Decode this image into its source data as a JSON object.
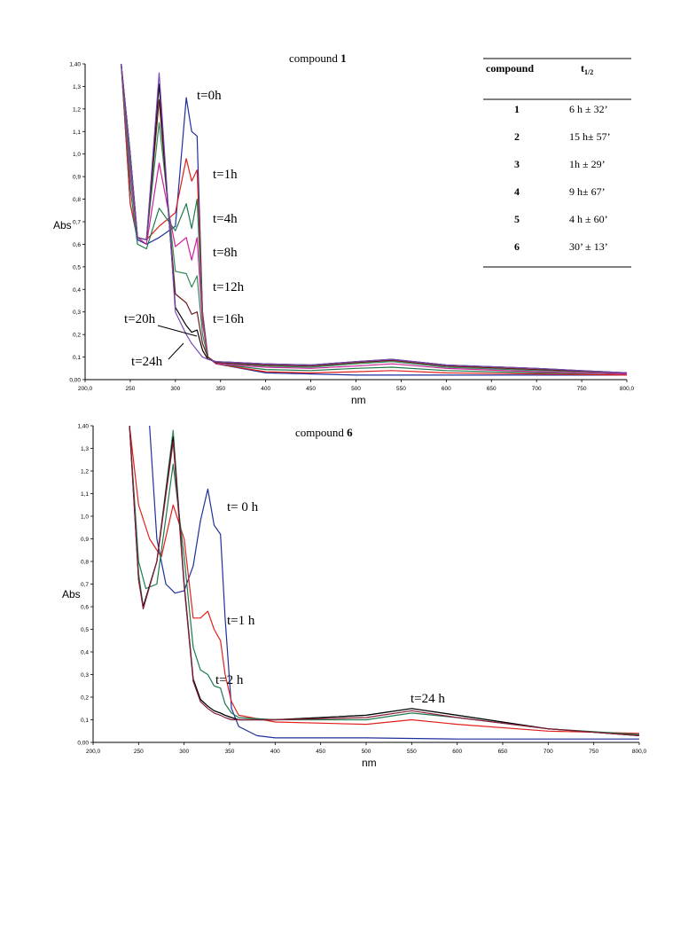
{
  "chart_data": [
    {
      "type": "line",
      "title": "compound",
      "title_bold": "1",
      "xlabel": "nm",
      "ylabel": "Abs",
      "xlim": [
        200,
        800
      ],
      "ylim": [
        0,
        1.4
      ],
      "x_ticks": [
        "200,0",
        "250",
        "300",
        "350",
        "400",
        "450",
        "500",
        "550",
        "600",
        "650",
        "700",
        "750",
        "800,0"
      ],
      "y_ticks": [
        "0,00",
        "0,1",
        "0,2",
        "0,3",
        "0,4",
        "0,5",
        "0,6",
        "0,7",
        "0,8",
        "0,9",
        "1,0",
        "1,1",
        "1,2",
        "1,3",
        "1,40"
      ],
      "grid": false,
      "annotations": [
        "t=0h",
        "t=1h",
        "t=4h",
        "t=8h",
        "t=12h",
        "t=16h",
        "t=20h",
        "t=24h"
      ],
      "series": [
        {
          "color": "#1f2f9c",
          "x": [
            240,
            250,
            258,
            268,
            282,
            300,
            312,
            318,
            324,
            330,
            336,
            345,
            400,
            450,
            500,
            540,
            600,
            700,
            800
          ],
          "y": [
            1.4,
            0.78,
            0.62,
            0.6,
            0.63,
            0.68,
            1.25,
            1.1,
            1.08,
            0.3,
            0.1,
            0.07,
            0.03,
            0.025,
            0.02,
            0.02,
            0.02,
            0.02,
            0.02
          ]
        },
        {
          "color": "#e0201c",
          "x": [
            240,
            250,
            258,
            268,
            282,
            300,
            312,
            318,
            324,
            330,
            336,
            345,
            400,
            450,
            500,
            540,
            600,
            700,
            800
          ],
          "y": [
            1.4,
            0.78,
            0.63,
            0.62,
            0.68,
            0.74,
            0.98,
            0.88,
            0.93,
            0.3,
            0.1,
            0.07,
            0.035,
            0.03,
            0.035,
            0.04,
            0.03,
            0.025,
            0.02
          ]
        },
        {
          "color": "#1e7a4c",
          "x": [
            240,
            250,
            258,
            268,
            282,
            300,
            312,
            318,
            324,
            330,
            336,
            345,
            400,
            450,
            500,
            540,
            600,
            700,
            800
          ],
          "y": [
            1.4,
            0.85,
            0.6,
            0.58,
            0.76,
            0.66,
            0.78,
            0.67,
            0.8,
            0.28,
            0.1,
            0.07,
            0.045,
            0.04,
            0.05,
            0.055,
            0.04,
            0.03,
            0.025
          ]
        },
        {
          "color": "#d0209a",
          "x": [
            240,
            250,
            258,
            268,
            282,
            300,
            312,
            318,
            324,
            330,
            336,
            345,
            400,
            450,
            500,
            540,
            600,
            700,
            800
          ],
          "y": [
            1.4,
            0.9,
            0.63,
            0.6,
            0.96,
            0.59,
            0.63,
            0.53,
            0.63,
            0.25,
            0.1,
            0.07,
            0.055,
            0.05,
            0.06,
            0.07,
            0.05,
            0.035,
            0.025
          ]
        },
        {
          "color": "#2e8b57",
          "x": [
            240,
            250,
            258,
            268,
            282,
            300,
            312,
            318,
            324,
            330,
            336,
            345,
            400,
            450,
            500,
            540,
            600,
            700,
            800
          ],
          "y": [
            1.4,
            0.95,
            0.63,
            0.62,
            1.14,
            0.48,
            0.47,
            0.41,
            0.46,
            0.2,
            0.1,
            0.075,
            0.06,
            0.055,
            0.07,
            0.08,
            0.055,
            0.04,
            0.03
          ]
        },
        {
          "color": "#6b1a1a",
          "x": [
            240,
            250,
            258,
            268,
            282,
            300,
            312,
            318,
            324,
            330,
            336,
            345,
            400,
            450,
            500,
            540,
            600,
            700,
            800
          ],
          "y": [
            1.4,
            1.0,
            0.63,
            0.62,
            1.24,
            0.38,
            0.34,
            0.29,
            0.3,
            0.16,
            0.1,
            0.075,
            0.065,
            0.06,
            0.075,
            0.085,
            0.06,
            0.045,
            0.03
          ]
        },
        {
          "color": "#000000",
          "x": [
            240,
            250,
            258,
            268,
            282,
            300,
            312,
            318,
            324,
            330,
            336,
            345,
            400,
            450,
            500,
            540,
            600,
            700,
            800
          ],
          "y": [
            1.4,
            1.0,
            0.63,
            0.62,
            1.31,
            0.32,
            0.24,
            0.21,
            0.22,
            0.13,
            0.09,
            0.08,
            0.07,
            0.065,
            0.08,
            0.09,
            0.065,
            0.05,
            0.03
          ]
        },
        {
          "color": "#7b4ab5",
          "x": [
            240,
            250,
            258,
            268,
            282,
            300,
            312,
            318,
            324,
            330,
            336,
            345,
            400,
            450,
            500,
            540,
            600,
            700,
            800
          ],
          "y": [
            1.4,
            1.0,
            0.63,
            0.62,
            1.36,
            0.3,
            0.2,
            0.16,
            0.13,
            0.1,
            0.09,
            0.08,
            0.07,
            0.065,
            0.08,
            0.09,
            0.065,
            0.05,
            0.03
          ]
        }
      ]
    },
    {
      "type": "line",
      "title": "compound",
      "title_bold": "6",
      "xlabel": "nm",
      "ylabel": "Abs",
      "xlim": [
        200,
        800
      ],
      "ylim": [
        0,
        1.4
      ],
      "x_ticks": [
        "200,0",
        "250",
        "300",
        "350",
        "400",
        "450",
        "500",
        "550",
        "600",
        "650",
        "700",
        "750",
        "800,0"
      ],
      "y_ticks": [
        "0,00",
        "0,1",
        "0,2",
        "0,3",
        "0,4",
        "0,5",
        "0,6",
        "0,7",
        "0,8",
        "0,9",
        "1,0",
        "1,1",
        "1,2",
        "1,3",
        "1,40"
      ],
      "grid": false,
      "annotations": [
        "t= 0 h",
        "t=1 h",
        "t=2 h",
        "t=24 h"
      ],
      "series": [
        {
          "color": "#1f2f9c",
          "x": [
            262,
            270,
            280,
            290,
            300,
            310,
            318,
            326,
            333,
            340,
            345,
            352,
            360,
            380,
            400,
            500,
            600,
            700,
            800
          ],
          "y": [
            1.4,
            0.9,
            0.7,
            0.66,
            0.67,
            0.78,
            0.98,
            1.12,
            0.96,
            0.92,
            0.55,
            0.15,
            0.07,
            0.03,
            0.02,
            0.02,
            0.015,
            0.015,
            0.015
          ]
        },
        {
          "color": "#e0201c",
          "x": [
            240,
            250,
            262,
            275,
            288,
            300,
            310,
            318,
            326,
            333,
            340,
            345,
            352,
            360,
            400,
            500,
            550,
            600,
            700,
            800
          ],
          "y": [
            1.4,
            1.05,
            0.9,
            0.82,
            1.05,
            0.9,
            0.55,
            0.55,
            0.58,
            0.5,
            0.45,
            0.3,
            0.18,
            0.12,
            0.09,
            0.08,
            0.1,
            0.08,
            0.05,
            0.04
          ]
        },
        {
          "color": "#1e7a4c",
          "x": [
            240,
            250,
            258,
            270,
            288,
            300,
            310,
            318,
            326,
            333,
            340,
            345,
            352,
            360,
            400,
            500,
            550,
            600,
            700,
            800
          ],
          "y": [
            1.4,
            0.8,
            0.68,
            0.7,
            1.23,
            0.82,
            0.42,
            0.32,
            0.3,
            0.25,
            0.24,
            0.17,
            0.13,
            0.11,
            0.1,
            0.1,
            0.13,
            0.11,
            0.06,
            0.035
          ]
        },
        {
          "color": "#2e8b57",
          "x": [
            240,
            250,
            255,
            270,
            288,
            300,
            310,
            318,
            326,
            333,
            340,
            345,
            352,
            360,
            400,
            500,
            550,
            600,
            700,
            800
          ],
          "y": [
            1.4,
            0.75,
            0.6,
            0.8,
            1.38,
            0.7,
            0.28,
            0.19,
            0.16,
            0.14,
            0.13,
            0.12,
            0.11,
            0.1,
            0.1,
            0.12,
            0.15,
            0.12,
            0.06,
            0.03
          ]
        },
        {
          "color": "#000000",
          "x": [
            240,
            250,
            255,
            270,
            288,
            300,
            310,
            318,
            326,
            333,
            340,
            345,
            352,
            360,
            400,
            500,
            550,
            600,
            700,
            800
          ],
          "y": [
            1.4,
            0.72,
            0.6,
            0.8,
            1.35,
            0.7,
            0.28,
            0.19,
            0.16,
            0.14,
            0.13,
            0.12,
            0.11,
            0.1,
            0.1,
            0.12,
            0.15,
            0.12,
            0.06,
            0.03
          ]
        },
        {
          "color": "#8a1a3a",
          "x": [
            240,
            250,
            255,
            270,
            288,
            300,
            310,
            318,
            326,
            333,
            340,
            345,
            352,
            360,
            400,
            500,
            550,
            600,
            700,
            800
          ],
          "y": [
            1.4,
            0.72,
            0.59,
            0.8,
            1.33,
            0.69,
            0.27,
            0.18,
            0.15,
            0.13,
            0.12,
            0.11,
            0.1,
            0.1,
            0.1,
            0.11,
            0.14,
            0.11,
            0.06,
            0.03
          ]
        }
      ]
    }
  ],
  "table": {
    "headers": [
      "compound",
      "t"
    ],
    "header_sub": "1/2",
    "rows": [
      {
        "compound": "1",
        "t": "6 h ± 32’"
      },
      {
        "compound": "2",
        "t": "15 h± 57’"
      },
      {
        "compound": "3",
        "t": "1h ± 29’"
      },
      {
        "compound": "4",
        "t": "9 h± 67’"
      },
      {
        "compound": "5",
        "t": "4 h ± 60’"
      },
      {
        "compound": "6",
        "t": "30’ ± 13’"
      }
    ]
  }
}
